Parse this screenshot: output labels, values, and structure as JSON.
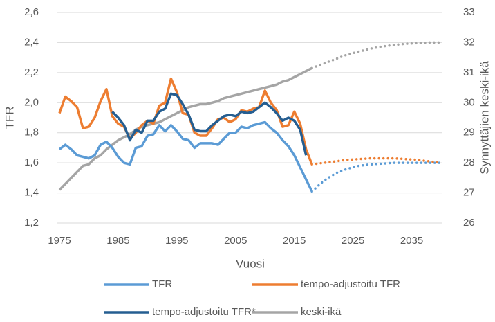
{
  "chart_data": {
    "type": "line",
    "x_label": "Vuosi",
    "y_label": "TFR",
    "y2_label": "Synnyttäjien keski-ikä",
    "x": [
      1975,
      1976,
      1977,
      1978,
      1979,
      1980,
      1981,
      1982,
      1983,
      1984,
      1985,
      1986,
      1987,
      1988,
      1989,
      1990,
      1991,
      1992,
      1993,
      1994,
      1995,
      1996,
      1997,
      1998,
      1999,
      2000,
      2001,
      2002,
      2003,
      2004,
      2005,
      2006,
      2007,
      2008,
      2009,
      2010,
      2011,
      2012,
      2013,
      2014,
      2015,
      2016,
      2017,
      2018,
      2020,
      2022,
      2024,
      2026,
      2028,
      2030,
      2032,
      2034,
      2036,
      2038,
      2040
    ],
    "xlim": [
      1975,
      2040
    ],
    "xticks": [
      1975,
      1985,
      1995,
      2005,
      2015,
      2025,
      2035
    ],
    "ylim": [
      1.2,
      2.6
    ],
    "yticks": [
      {
        "value": 1.2,
        "label": "1,2"
      },
      {
        "value": 1.4,
        "label": "1,4"
      },
      {
        "value": 1.6,
        "label": "1,6"
      },
      {
        "value": 1.8,
        "label": "1,8"
      },
      {
        "value": 2.0,
        "label": "2,0"
      },
      {
        "value": 2.2,
        "label": "2,2"
      },
      {
        "value": 2.4,
        "label": "2,4"
      },
      {
        "value": 2.6,
        "label": "2,6"
      }
    ],
    "y2lim": [
      26,
      33
    ],
    "y2ticks": [
      26,
      27,
      28,
      29,
      30,
      31,
      32,
      33
    ],
    "grid": true,
    "legend": "bottom",
    "series": [
      {
        "name": "TFR",
        "color": "#5b9bd5",
        "values": [
          1.69,
          1.72,
          1.69,
          1.65,
          1.64,
          1.63,
          1.65,
          1.72,
          1.74,
          1.7,
          1.64,
          1.6,
          1.59,
          1.7,
          1.71,
          1.78,
          1.79,
          1.85,
          1.81,
          1.85,
          1.81,
          1.76,
          1.75,
          1.7,
          1.73,
          1.73,
          1.73,
          1.72,
          1.76,
          1.8,
          1.8,
          1.84,
          1.83,
          1.85,
          1.86,
          1.87,
          1.83,
          1.8,
          1.75,
          1.71,
          1.65,
          1.57,
          1.49,
          1.41,
          null,
          null,
          null,
          null,
          null,
          null,
          null,
          null,
          null,
          null,
          null
        ],
        "projection": [
          null,
          null,
          null,
          null,
          null,
          null,
          null,
          null,
          null,
          null,
          null,
          null,
          null,
          null,
          null,
          null,
          null,
          null,
          null,
          null,
          null,
          null,
          null,
          null,
          null,
          null,
          null,
          null,
          null,
          null,
          null,
          null,
          null,
          null,
          null,
          null,
          null,
          null,
          null,
          null,
          null,
          null,
          null,
          1.41,
          1.48,
          1.53,
          1.56,
          1.58,
          1.59,
          1.595,
          1.6,
          1.6,
          1.6,
          1.6,
          1.6
        ]
      },
      {
        "name": "tempo-adjustoitu TFR",
        "color": "#ed7d31",
        "values": [
          1.93,
          2.04,
          2.01,
          1.97,
          1.83,
          1.84,
          1.9,
          2.01,
          2.09,
          1.91,
          1.86,
          1.84,
          1.76,
          1.8,
          1.85,
          1.88,
          1.86,
          1.98,
          2.0,
          2.16,
          2.07,
          1.93,
          1.92,
          1.8,
          1.78,
          1.78,
          1.83,
          1.89,
          1.9,
          1.87,
          1.89,
          1.95,
          1.94,
          1.96,
          1.97,
          2.08,
          2.0,
          1.95,
          1.84,
          1.85,
          1.94,
          1.86,
          1.69,
          1.59,
          null,
          null,
          null,
          null,
          null,
          null,
          null,
          null,
          null,
          null,
          null
        ],
        "projection": [
          null,
          null,
          null,
          null,
          null,
          null,
          null,
          null,
          null,
          null,
          null,
          null,
          null,
          null,
          null,
          null,
          null,
          null,
          null,
          null,
          null,
          null,
          null,
          null,
          null,
          null,
          null,
          null,
          null,
          null,
          null,
          null,
          null,
          null,
          null,
          null,
          null,
          null,
          null,
          null,
          null,
          null,
          null,
          1.59,
          1.6,
          1.61,
          1.62,
          1.625,
          1.63,
          1.63,
          1.63,
          1.625,
          1.62,
          1.61,
          1.6
        ]
      },
      {
        "name": "tempo-adjustoitu TFR*",
        "color": "#255e91",
        "values": [
          null,
          null,
          null,
          null,
          null,
          null,
          null,
          null,
          null,
          1.94,
          1.9,
          1.85,
          1.75,
          1.82,
          1.8,
          1.88,
          1.88,
          1.94,
          1.96,
          2.06,
          2.05,
          1.99,
          1.92,
          1.82,
          1.81,
          1.81,
          1.85,
          1.88,
          1.91,
          1.92,
          1.91,
          1.94,
          1.93,
          1.94,
          1.97,
          2.0,
          1.97,
          1.93,
          1.88,
          1.9,
          1.88,
          1.82,
          1.65,
          null,
          null,
          null,
          null,
          null,
          null,
          null,
          null,
          null,
          null,
          null,
          null
        ]
      },
      {
        "name": "keski-ikä",
        "color": "#a5a5a5",
        "axis": "y2",
        "values": [
          27.1,
          27.3,
          27.5,
          27.7,
          27.9,
          27.95,
          28.15,
          28.25,
          28.45,
          28.6,
          28.75,
          28.85,
          28.95,
          29.1,
          29.2,
          29.25,
          29.3,
          29.35,
          29.45,
          29.55,
          29.65,
          29.75,
          29.85,
          29.9,
          29.95,
          29.95,
          30.0,
          30.05,
          30.15,
          30.2,
          30.25,
          30.3,
          30.35,
          30.4,
          30.45,
          30.5,
          30.55,
          30.6,
          30.7,
          30.75,
          30.85,
          30.95,
          31.05,
          31.15,
          null,
          null,
          null,
          null,
          null,
          null,
          null,
          null,
          null,
          null,
          null
        ],
        "projection": [
          null,
          null,
          null,
          null,
          null,
          null,
          null,
          null,
          null,
          null,
          null,
          null,
          null,
          null,
          null,
          null,
          null,
          null,
          null,
          null,
          null,
          null,
          null,
          null,
          null,
          null,
          null,
          null,
          null,
          null,
          null,
          null,
          null,
          null,
          null,
          null,
          null,
          null,
          null,
          null,
          null,
          null,
          null,
          31.15,
          31.3,
          31.45,
          31.6,
          31.7,
          31.8,
          31.87,
          31.92,
          31.96,
          31.98,
          32.0,
          32.0
        ]
      }
    ]
  }
}
